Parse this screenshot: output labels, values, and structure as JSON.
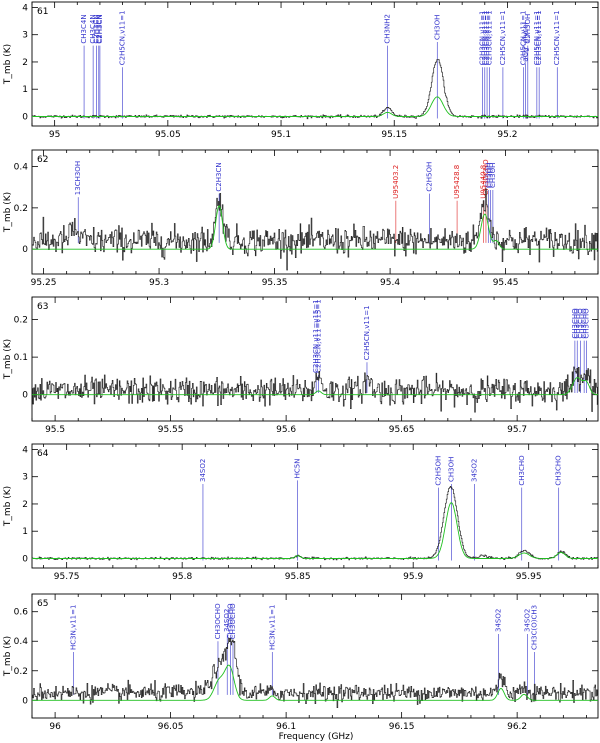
{
  "figure": {
    "ylabel": "T_mb (K)",
    "xlabel": "Frequency (GHz)"
  },
  "colors": {
    "observed": "#2b2b2b",
    "model": "#20c020",
    "identified": "#3333cc",
    "unidentified": "#dd2222"
  },
  "chart_data": [
    {
      "type": "line",
      "panel": "61",
      "xlim": [
        94.99,
        95.24
      ],
      "ylim": [
        -0.35,
        4.2
      ],
      "xticks": [
        95,
        95.05,
        95.1,
        95.15,
        95.2
      ],
      "yticks": [
        0,
        1,
        2,
        3,
        4
      ],
      "noise": 0.025,
      "baseline": 0.0,
      "series": [
        {
          "name": "observed",
          "kind": "observed",
          "features": [
            [
              95.147,
              0.32,
              0.0018
            ],
            [
              95.169,
              2.1,
              0.0026
            ]
          ]
        },
        {
          "name": "model",
          "kind": "model",
          "features": [
            [
              95.147,
              0.15,
              0.0018
            ],
            [
              95.169,
              0.72,
              0.0026
            ]
          ]
        }
      ],
      "lines": [
        {
          "freq": 95.013,
          "label": "CH3C4N",
          "color": "blue"
        },
        {
          "freq": 95.017,
          "label": "CH3C4N",
          "color": "blue"
        },
        {
          "freq": 95.0185,
          "label": "C2H3CN",
          "color": "blue"
        },
        {
          "freq": 95.0195,
          "label": "C2H3CN",
          "color": "blue"
        },
        {
          "freq": 95.02,
          "label": "C2H3CN",
          "color": "blue"
        },
        {
          "freq": 95.03,
          "label": "C2H5CN,v11=1",
          "color": "blue"
        },
        {
          "freq": 95.147,
          "label": "CH3NH2",
          "color": "blue"
        },
        {
          "freq": 95.169,
          "label": "CH3OH",
          "color": "blue"
        },
        {
          "freq": 95.189,
          "label": "C2H3CN,v11=1",
          "color": "blue"
        },
        {
          "freq": 95.19,
          "label": "C2H3CN,v11=1",
          "color": "blue"
        },
        {
          "freq": 95.191,
          "label": "C2H3CN,v11=1",
          "color": "blue"
        },
        {
          "freq": 95.192,
          "label": "C2H3CN,v11=1",
          "color": "blue"
        },
        {
          "freq": 95.198,
          "label": "C2H5CN,v11=1",
          "color": "blue"
        },
        {
          "freq": 95.207,
          "label": "C2H5CN,v11=1",
          "color": "blue"
        },
        {
          "freq": 95.208,
          "label": "aGg'-glycol",
          "color": "blue"
        },
        {
          "freq": 95.209,
          "label": "C2H5OH",
          "color": "blue"
        },
        {
          "freq": 95.213,
          "label": "C2H5CN,v11=1",
          "color": "blue"
        },
        {
          "freq": 95.214,
          "label": "C2H3CN,v11=1",
          "color": "blue"
        },
        {
          "freq": 95.222,
          "label": "C2H5CN,v11=1",
          "color": "blue"
        }
      ]
    },
    {
      "type": "line",
      "panel": "62",
      "xlim": [
        95.245,
        95.49
      ],
      "ylim": [
        -0.12,
        0.48
      ],
      "xticks": [
        95.25,
        95.3,
        95.35,
        95.4,
        95.45
      ],
      "yticks": [
        0,
        0.2,
        0.4
      ],
      "noise": 0.035,
      "baseline": 0.04,
      "series": [
        {
          "name": "observed",
          "kind": "observed",
          "features": [
            [
              95.263,
              0.06,
              0.0015
            ],
            [
              95.326,
              0.2,
              0.0016
            ],
            [
              95.441,
              0.2,
              0.0018
            ]
          ]
        },
        {
          "name": "model",
          "kind": "model",
          "features": [
            [
              95.326,
              0.21,
              0.0015
            ],
            [
              95.441,
              0.17,
              0.0017
            ],
            [
              95.446,
              0.04,
              0.0012
            ]
          ]
        }
      ],
      "lines": [
        {
          "freq": 95.265,
          "label": "13CH3OH",
          "color": "blue"
        },
        {
          "freq": 95.326,
          "label": "C2H3CN",
          "color": "blue"
        },
        {
          "freq": 95.4025,
          "label": "U95403.2",
          "color": "red"
        },
        {
          "freq": 95.417,
          "label": "C2H5OH",
          "color": "blue"
        },
        {
          "freq": 95.429,
          "label": "U95428.8",
          "color": "red"
        },
        {
          "freq": 95.4405,
          "label": "U95440.8",
          "color": "red"
        },
        {
          "freq": 95.4415,
          "label": "CH3OCHO",
          "color": "red"
        },
        {
          "freq": 95.4425,
          "label": "CH3OH",
          "color": "blue"
        },
        {
          "freq": 95.4435,
          "label": "CH3OH",
          "color": "blue"
        },
        {
          "freq": 95.4445,
          "label": "CH3OH",
          "color": "blue"
        }
      ]
    },
    {
      "type": "line",
      "panel": "63",
      "xlim": [
        95.49,
        95.735
      ],
      "ylim": [
        -0.07,
        0.26
      ],
      "xticks": [
        95.5,
        95.55,
        95.6,
        95.65,
        95.7
      ],
      "yticks": [
        -0.1,
        0,
        0.1,
        0.2
      ],
      "noise": 0.018,
      "baseline": 0.01,
      "series": [
        {
          "name": "observed",
          "kind": "observed",
          "features": [
            [
              95.614,
              0.04,
              0.0014
            ],
            [
              95.635,
              0.03,
              0.0014
            ],
            [
              95.726,
              0.05,
              0.002
            ],
            [
              95.73,
              0.04,
              0.0015
            ]
          ]
        },
        {
          "name": "model",
          "kind": "model",
          "features": [
            [
              95.614,
              0.01,
              0.0012
            ],
            [
              95.726,
              0.045,
              0.002
            ],
            [
              95.73,
              0.03,
              0.0014
            ]
          ]
        }
      ],
      "lines": [
        {
          "freq": 95.613,
          "label": "C2H3CN,v11=v15=1",
          "color": "blue"
        },
        {
          "freq": 95.614,
          "label": "C2H3CN,v11=v15=1",
          "color": "blue"
        },
        {
          "freq": 95.635,
          "label": "C2H5CN,v11=1",
          "color": "blue"
        },
        {
          "freq": 95.725,
          "label": "CH3CHO",
          "color": "blue"
        },
        {
          "freq": 95.726,
          "label": "CH3CHO",
          "color": "blue"
        },
        {
          "freq": 95.7275,
          "label": "CH3CHO",
          "color": "blue"
        },
        {
          "freq": 95.729,
          "label": "CH3CHO",
          "color": "blue"
        },
        {
          "freq": 95.73,
          "label": "CH3CHO",
          "color": "blue"
        }
      ]
    },
    {
      "type": "line",
      "panel": "64",
      "xlim": [
        95.735,
        95.98
      ],
      "ylim": [
        -0.35,
        4.2
      ],
      "xticks": [
        95.75,
        95.8,
        95.85,
        95.9,
        95.95
      ],
      "yticks": [
        0,
        1,
        2,
        3,
        4
      ],
      "noise": 0.02,
      "baseline": 0.0,
      "series": [
        {
          "name": "observed",
          "kind": "observed",
          "features": [
            [
              95.85,
              0.12,
              0.0012
            ],
            [
              95.914,
              0.5,
              0.0025
            ],
            [
              95.9165,
              2.3,
              0.0028
            ],
            [
              95.93,
              0.1,
              0.002
            ],
            [
              95.948,
              0.28,
              0.0023
            ],
            [
              95.964,
              0.27,
              0.0018
            ]
          ]
        },
        {
          "name": "model",
          "kind": "model",
          "features": [
            [
              95.85,
              0.1,
              0.0012
            ],
            [
              95.9165,
              2.05,
              0.0025
            ],
            [
              95.948,
              0.2,
              0.0023
            ],
            [
              95.964,
              0.22,
              0.0018
            ]
          ]
        }
      ],
      "lines": [
        {
          "freq": 95.809,
          "label": "34SO2",
          "color": "blue"
        },
        {
          "freq": 95.85,
          "label": "HC5N",
          "color": "blue"
        },
        {
          "freq": 95.911,
          "label": "C2H5OH",
          "color": "blue"
        },
        {
          "freq": 95.9165,
          "label": "CH3OH",
          "color": "blue"
        },
        {
          "freq": 95.9265,
          "label": "34SO2",
          "color": "blue"
        },
        {
          "freq": 95.947,
          "label": "CH3CHO",
          "color": "blue"
        },
        {
          "freq": 95.963,
          "label": "CH3CHO",
          "color": "blue"
        }
      ]
    },
    {
      "type": "line",
      "panel": "65",
      "xlim": [
        95.99,
        96.235
      ],
      "ylim": [
        -0.12,
        0.72
      ],
      "xticks": [
        96,
        96.05,
        96.1,
        96.15,
        96.2
      ],
      "yticks": [
        0,
        0.2,
        0.4,
        0.6
      ],
      "noise": 0.03,
      "baseline": 0.05,
      "series": [
        {
          "name": "observed",
          "kind": "observed",
          "features": [
            [
              96.0705,
              0.16,
              0.003
            ],
            [
              96.0755,
              0.27,
              0.002
            ],
            [
              96.0775,
              0.12,
              0.0015
            ],
            [
              96.193,
              0.1,
              0.0014
            ],
            [
              96.203,
              0.04,
              0.0015
            ]
          ]
        },
        {
          "name": "model",
          "kind": "model",
          "features": [
            [
              96.071,
              0.13,
              0.0022
            ],
            [
              96.0755,
              0.22,
              0.002
            ],
            [
              96.094,
              0.03,
              0.0012
            ],
            [
              96.193,
              0.08,
              0.0014
            ],
            [
              96.203,
              0.04,
              0.0014
            ]
          ]
        }
      ],
      "lines": [
        {
          "freq": 96.008,
          "label": "HC3N,v11=1",
          "color": "blue"
        },
        {
          "freq": 96.0705,
          "label": "CH3OCHO",
          "color": "blue"
        },
        {
          "freq": 96.0745,
          "label": "34SO2",
          "color": "blue"
        },
        {
          "freq": 96.076,
          "label": "CH3OCHO",
          "color": "blue"
        },
        {
          "freq": 96.077,
          "label": "CH3OCHO",
          "color": "blue"
        },
        {
          "freq": 96.094,
          "label": "HC3N,v11=1",
          "color": "blue"
        },
        {
          "freq": 96.192,
          "label": "34SO2",
          "color": "blue"
        },
        {
          "freq": 96.2045,
          "label": "34SO2",
          "color": "blue"
        },
        {
          "freq": 96.2075,
          "label": "CH3C(O)CH3",
          "color": "blue"
        }
      ]
    }
  ]
}
